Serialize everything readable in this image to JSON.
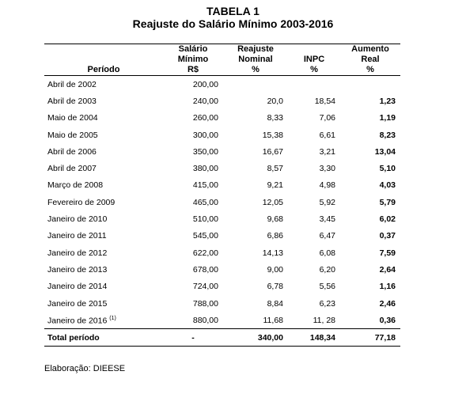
{
  "title": "TABELA 1",
  "subtitle": "Reajuste do Salário Mínimo 2003-2016",
  "headers": {
    "periodo": "Período",
    "salario": "Salário Mínimo",
    "salario_unit": "R$",
    "reajuste": "Reajuste Nominal",
    "reajuste_unit": "%",
    "inpc": "INPC",
    "inpc_unit": "%",
    "aumento": "Aumento Real",
    "aumento_unit": "%"
  },
  "rows": [
    {
      "periodo": "Abril de 2002",
      "sup": "",
      "salario": "200,00",
      "reajuste": "",
      "inpc": "",
      "aumento": ""
    },
    {
      "periodo": "Abril de 2003",
      "sup": "",
      "salario": "240,00",
      "reajuste": "20,0",
      "inpc": "18,54",
      "aumento": "1,23"
    },
    {
      "periodo": "Maio de 2004",
      "sup": "",
      "salario": "260,00",
      "reajuste": "8,33",
      "inpc": "7,06",
      "aumento": "1,19"
    },
    {
      "periodo": "Maio de 2005",
      "sup": "",
      "salario": "300,00",
      "reajuste": "15,38",
      "inpc": "6,61",
      "aumento": "8,23"
    },
    {
      "periodo": "Abril de 2006",
      "sup": "",
      "salario": "350,00",
      "reajuste": "16,67",
      "inpc": "3,21",
      "aumento": "13,04"
    },
    {
      "periodo": "Abril de 2007",
      "sup": "",
      "salario": "380,00",
      "reajuste": "8,57",
      "inpc": "3,30",
      "aumento": "5,10"
    },
    {
      "periodo": "Março de 2008",
      "sup": "",
      "salario": "415,00",
      "reajuste": "9,21",
      "inpc": "4,98",
      "aumento": "4,03"
    },
    {
      "periodo": "Fevereiro de 2009",
      "sup": "",
      "salario": "465,00",
      "reajuste": "12,05",
      "inpc": "5,92",
      "aumento": "5,79"
    },
    {
      "periodo": "Janeiro de 2010",
      "sup": "",
      "salario": "510,00",
      "reajuste": "9,68",
      "inpc": "3,45",
      "aumento": "6,02"
    },
    {
      "periodo": "Janeiro de 2011",
      "sup": "",
      "salario": "545,00",
      "reajuste": "6,86",
      "inpc": "6,47",
      "aumento": "0,37"
    },
    {
      "periodo": "Janeiro de 2012",
      "sup": "",
      "salario": "622,00",
      "reajuste": "14,13",
      "inpc": "6,08",
      "aumento": "7,59"
    },
    {
      "periodo": "Janeiro de 2013",
      "sup": "",
      "salario": "678,00",
      "reajuste": "9,00",
      "inpc": "6,20",
      "aumento": "2,64"
    },
    {
      "periodo": "Janeiro de 2014",
      "sup": "",
      "salario": "724,00",
      "reajuste": "6,78",
      "inpc": "5,56",
      "aumento": "1,16"
    },
    {
      "periodo": "Janeiro de 2015",
      "sup": "",
      "salario": "788,00",
      "reajuste": "8,84",
      "inpc": "6,23",
      "aumento": "2,46"
    },
    {
      "periodo": "Janeiro de 2016",
      "sup": "(1)",
      "salario": "880,00",
      "reajuste": "11,68",
      "inpc": "11, 28",
      "aumento": "0,36"
    }
  ],
  "total": {
    "label": "Total período",
    "salario": "-",
    "reajuste": "340,00",
    "inpc": "148,34",
    "aumento": "77,18"
  },
  "source": "Elaboração: DIEESE"
}
